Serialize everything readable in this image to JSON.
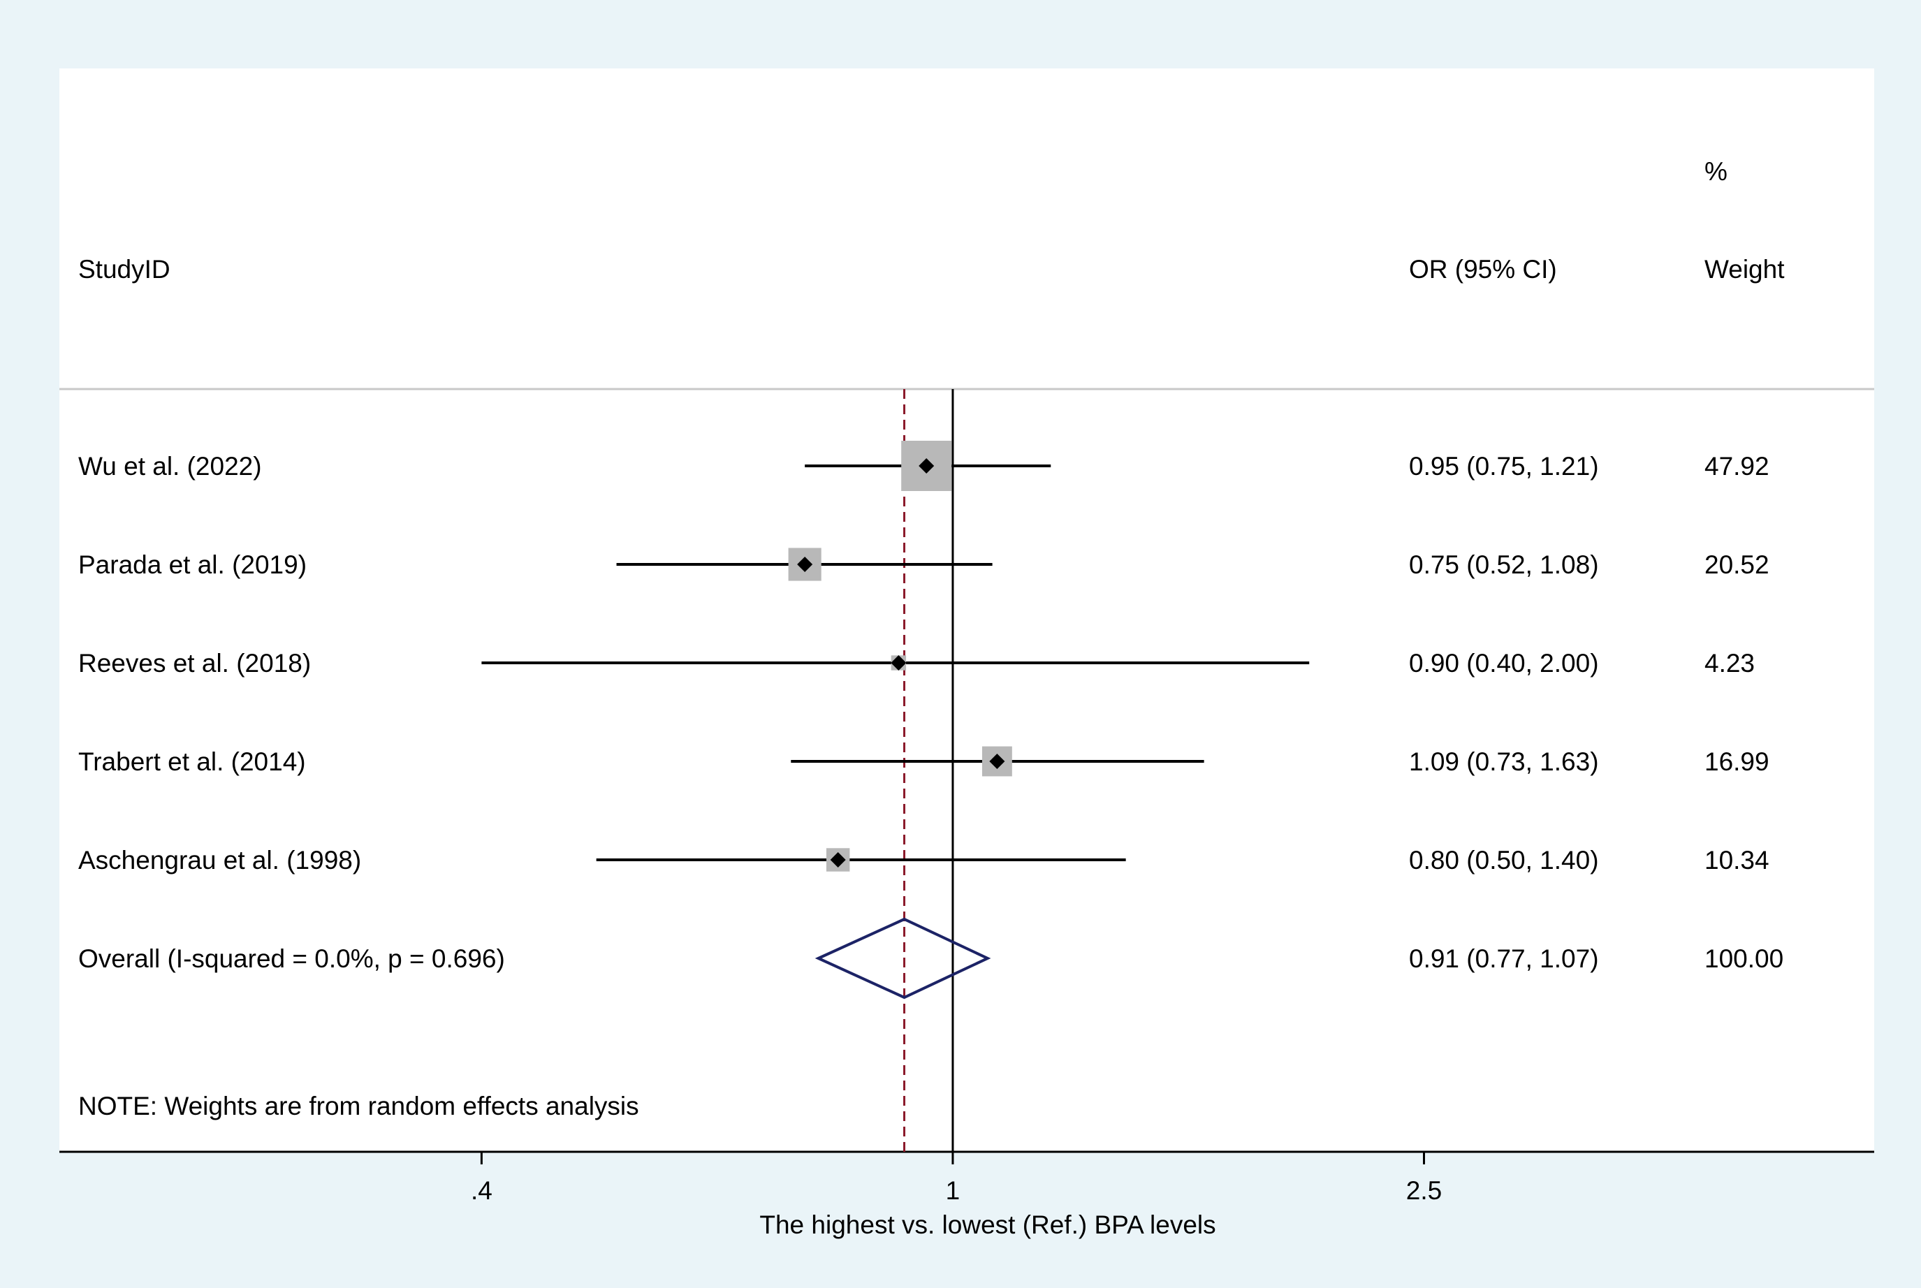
{
  "chart_data": {
    "type": "forest",
    "headers": {
      "study": "StudyID",
      "effect": "OR (95% CI)",
      "weight_top": "%",
      "weight": "Weight"
    },
    "x_scale": "log",
    "xlim": [
      0.176,
      6.0
    ],
    "xticks": [
      {
        "value": 0.4,
        "label": ".4"
      },
      {
        "value": 1.0,
        "label": "1"
      },
      {
        "value": 2.5,
        "label": "2.5"
      }
    ],
    "xlabel": "The highest vs. lowest (Ref.) BPA levels",
    "null_line": 1,
    "pooled_line": 0.91,
    "studies": [
      {
        "label": "Wu et al. (2022)",
        "or": 0.95,
        "lo": 0.75,
        "hi": 1.21,
        "or_text": "0.95 (0.75, 1.21)",
        "weight": 47.92,
        "weight_text": "47.92"
      },
      {
        "label": "Parada et al. (2019)",
        "or": 0.75,
        "lo": 0.52,
        "hi": 1.08,
        "or_text": "0.75 (0.52, 1.08)",
        "weight": 20.52,
        "weight_text": "20.52"
      },
      {
        "label": "Reeves et al. (2018)",
        "or": 0.9,
        "lo": 0.4,
        "hi": 2.0,
        "or_text": "0.90 (0.40, 2.00)",
        "weight": 4.23,
        "weight_text": "4.23"
      },
      {
        "label": "Trabert et al. (2014)",
        "or": 1.09,
        "lo": 0.73,
        "hi": 1.63,
        "or_text": "1.09 (0.73, 1.63)",
        "weight": 16.99,
        "weight_text": "16.99"
      },
      {
        "label": "Aschengrau et al. (1998)",
        "or": 0.8,
        "lo": 0.5,
        "hi": 1.4,
        "or_text": "0.80 (0.50, 1.40)",
        "weight": 10.34,
        "weight_text": "10.34"
      }
    ],
    "overall": {
      "label": "Overall  (I-squared = 0.0%, p = 0.696)",
      "or": 0.91,
      "lo": 0.77,
      "hi": 1.07,
      "or_text": "0.91 (0.77, 1.07)",
      "weight_text": "100.00"
    },
    "note": "NOTE: Weights are from random effects analysis",
    "colors": {
      "background": "#eaf4f8",
      "panel": "#ffffff",
      "weight_box": "#b8b8b8",
      "diamond": "#1c2366",
      "pooled_line": "#8b1a2b",
      "text": "#000000"
    }
  }
}
